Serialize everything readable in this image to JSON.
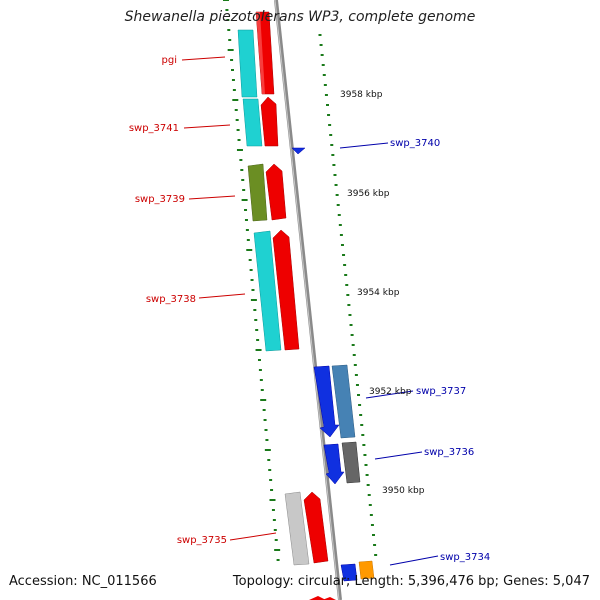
{
  "title": "Shewanella piezotolerans WP3, complete genome",
  "footer": {
    "accession": "Accession: NC_011566",
    "topology": "Topology: circular; Length: 5,396,476 bp; Genes: 5,047"
  },
  "colors": {
    "reverse_label": "#cc0000",
    "forward_label": "#0000aa",
    "backbone": "#888888",
    "tick": "#1a7a1a"
  },
  "scale_labels": [
    "3958 kbp",
    "3956 kbp",
    "3954 kbp",
    "3952 kbp",
    "3950 kbp"
  ],
  "genes": [
    {
      "name": "pgi",
      "strand": "reverse"
    },
    {
      "name": "swp_3741",
      "strand": "reverse"
    },
    {
      "name": "swp_3740",
      "strand": "forward"
    },
    {
      "name": "swp_3739",
      "strand": "reverse"
    },
    {
      "name": "swp_3738",
      "strand": "reverse"
    },
    {
      "name": "swp_3737",
      "strand": "forward"
    },
    {
      "name": "swp_3736",
      "strand": "forward"
    },
    {
      "name": "swp_3735",
      "strand": "reverse"
    },
    {
      "name": "swp_3734",
      "strand": "forward"
    }
  ]
}
